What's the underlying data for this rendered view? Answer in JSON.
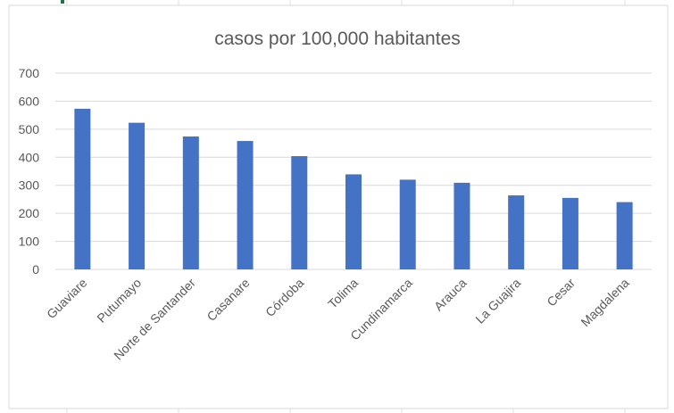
{
  "chart_data": {
    "type": "bar",
    "title": "casos por 100,000 habitantes",
    "xlabel": "",
    "ylabel": "",
    "ylim": [
      0,
      700
    ],
    "yticks": [
      0,
      100,
      200,
      300,
      400,
      500,
      600,
      700
    ],
    "grid": true,
    "legend": "none",
    "bar_color": "#4472C4",
    "categories": [
      "Guaviare",
      "Putumayo",
      "Norte de Santander",
      "Casanare",
      "Córdoba",
      "Tolima",
      "Cundinamarca",
      "Arauca",
      "La Guajira",
      "Cesar",
      "Magdalena"
    ],
    "values": [
      573,
      523,
      474,
      458,
      404,
      339,
      320,
      309,
      264,
      255,
      240
    ]
  }
}
